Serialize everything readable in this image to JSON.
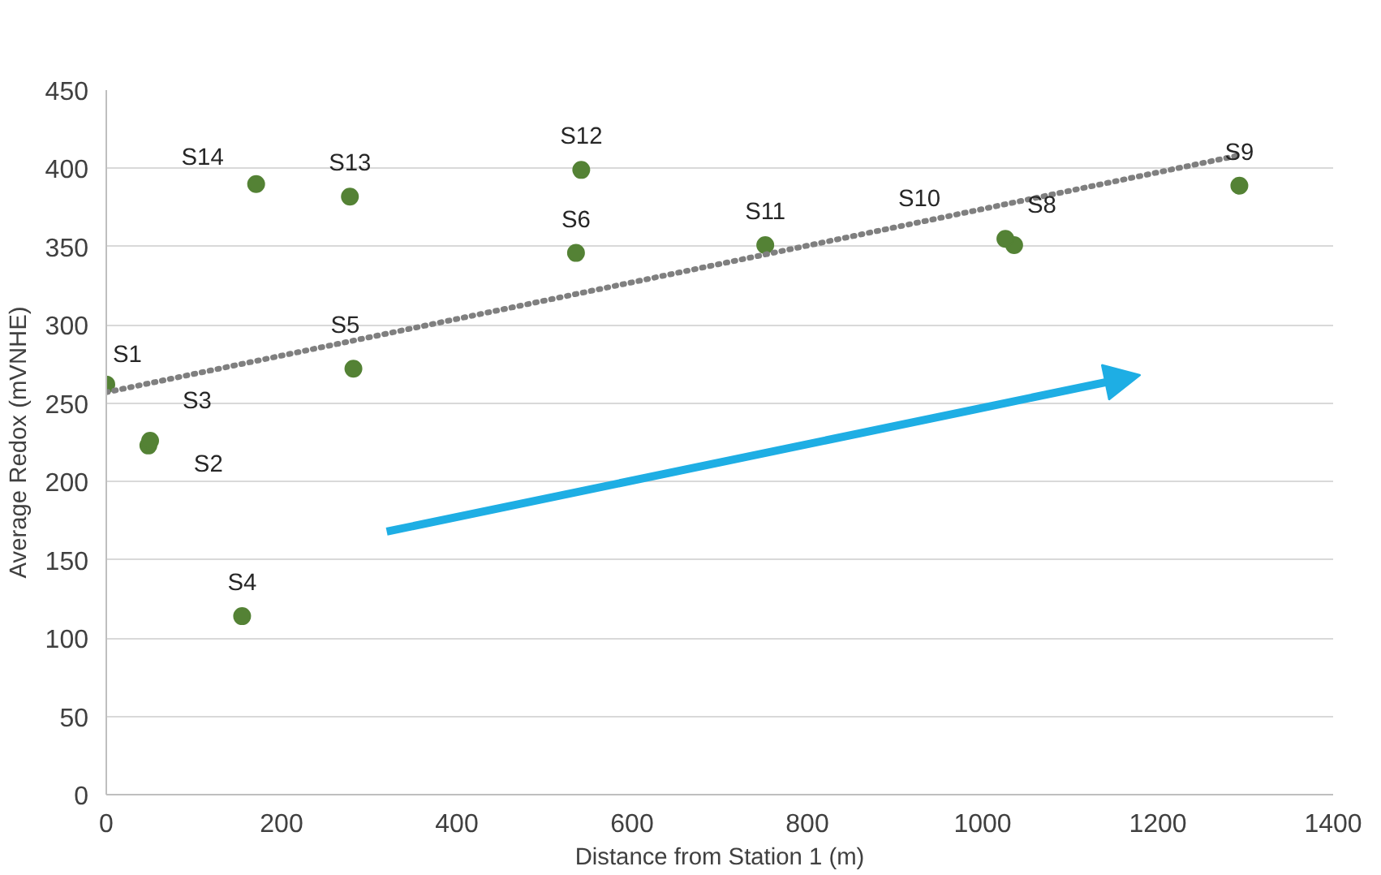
{
  "chart_data": {
    "type": "scatter",
    "xlabel": "Distance from Station 1 (m)",
    "ylabel": "Average Redox (mVNHE)",
    "series": [
      {
        "color": "#548235",
        "marker": "circle",
        "x": [
          0,
          48,
          50,
          155,
          282,
          536,
          1036,
          1293,
          1026,
          752,
          542,
          278,
          171
        ],
        "values": [
          262,
          223,
          226,
          114,
          272,
          346,
          351,
          389,
          355,
          351,
          399,
          382,
          390
        ]
      },
      {
        "type": "line",
        "color": "#7f7f7f",
        "line_style": "dotted",
        "marker": "none",
        "x": [
          0,
          1290
        ],
        "values": [
          257,
          408
        ]
      }
    ],
    "annotations": [
      {
        "text": "S1",
        "x": 0,
        "y": 262
      },
      {
        "text": "S2",
        "x": 48,
        "y": 223
      },
      {
        "text": "S3",
        "x": 50,
        "y": 226
      },
      {
        "text": "S4",
        "x": 155,
        "y": 114
      },
      {
        "text": "S5",
        "x": 282,
        "y": 272
      },
      {
        "text": "S6",
        "x": 536,
        "y": 346
      },
      {
        "text": "S8",
        "x": 1036,
        "y": 351
      },
      {
        "text": "S9",
        "x": 1293,
        "y": 389
      },
      {
        "text": "S10",
        "x": 1026,
        "y": 355
      },
      {
        "text": "S11",
        "x": 752,
        "y": 351
      },
      {
        "text": "S12",
        "x": 542,
        "y": 399
      },
      {
        "text": "S13",
        "x": 278,
        "y": 382
      },
      {
        "text": "S14",
        "x": 171,
        "y": 390
      }
    ],
    "xlim": [
      0,
      1400
    ],
    "xticks": [
      0,
      200,
      400,
      600,
      800,
      1000,
      1200,
      1400
    ],
    "ylim": [
      0,
      450
    ],
    "yticks": [
      0,
      50,
      100,
      150,
      200,
      250,
      300,
      350,
      400,
      450
    ],
    "grid": "y"
  }
}
